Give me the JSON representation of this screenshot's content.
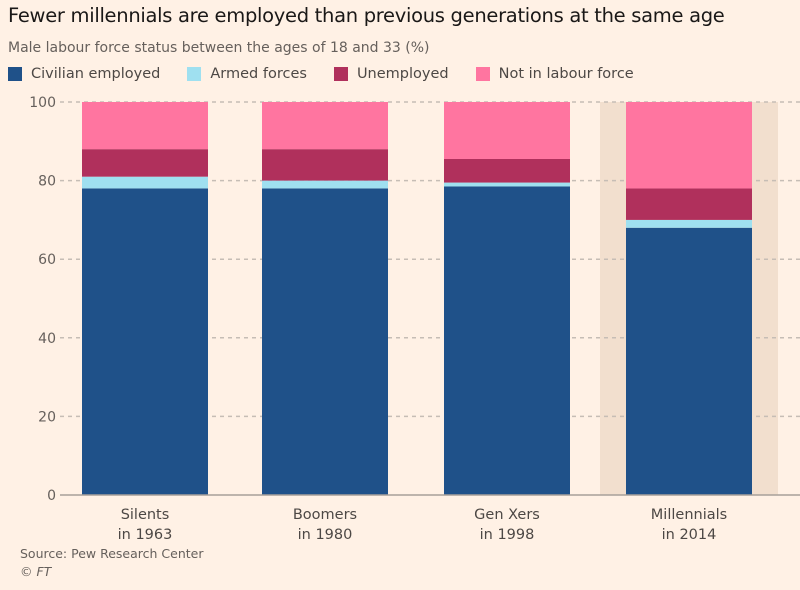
{
  "chart_data": {
    "type": "bar",
    "stacked": true,
    "title": "Fewer millennials are employed than previous generations at the same age",
    "subtitle": "Male labour force status between the ages of 18 and 33 (%)",
    "categories": [
      [
        "Silents",
        "in 1963"
      ],
      [
        "Boomers",
        "in 1980"
      ],
      [
        "Gen Xers",
        "in 1998"
      ],
      [
        "Millennials",
        "in 2014"
      ]
    ],
    "highlight_category": "Millennials",
    "series": [
      {
        "name": "Civilian employed",
        "color": "#1f5189",
        "values": [
          78,
          78,
          78.5,
          68
        ]
      },
      {
        "name": "Armed forces",
        "color": "#9fe0f0",
        "values": [
          3,
          2,
          1,
          2
        ]
      },
      {
        "name": "Unemployed",
        "color": "#b0305c",
        "values": [
          7,
          8,
          6,
          8
        ]
      },
      {
        "name": "Not in labour force",
        "color": "#ff75a0",
        "values": [
          12,
          12,
          14.5,
          22
        ]
      }
    ],
    "ylim": [
      0,
      100
    ],
    "yticks": [
      0,
      20,
      40,
      60,
      80,
      100
    ],
    "grid": true,
    "legend_position": "top"
  },
  "source": "Source: Pew Research Center",
  "copyright": "© FT"
}
